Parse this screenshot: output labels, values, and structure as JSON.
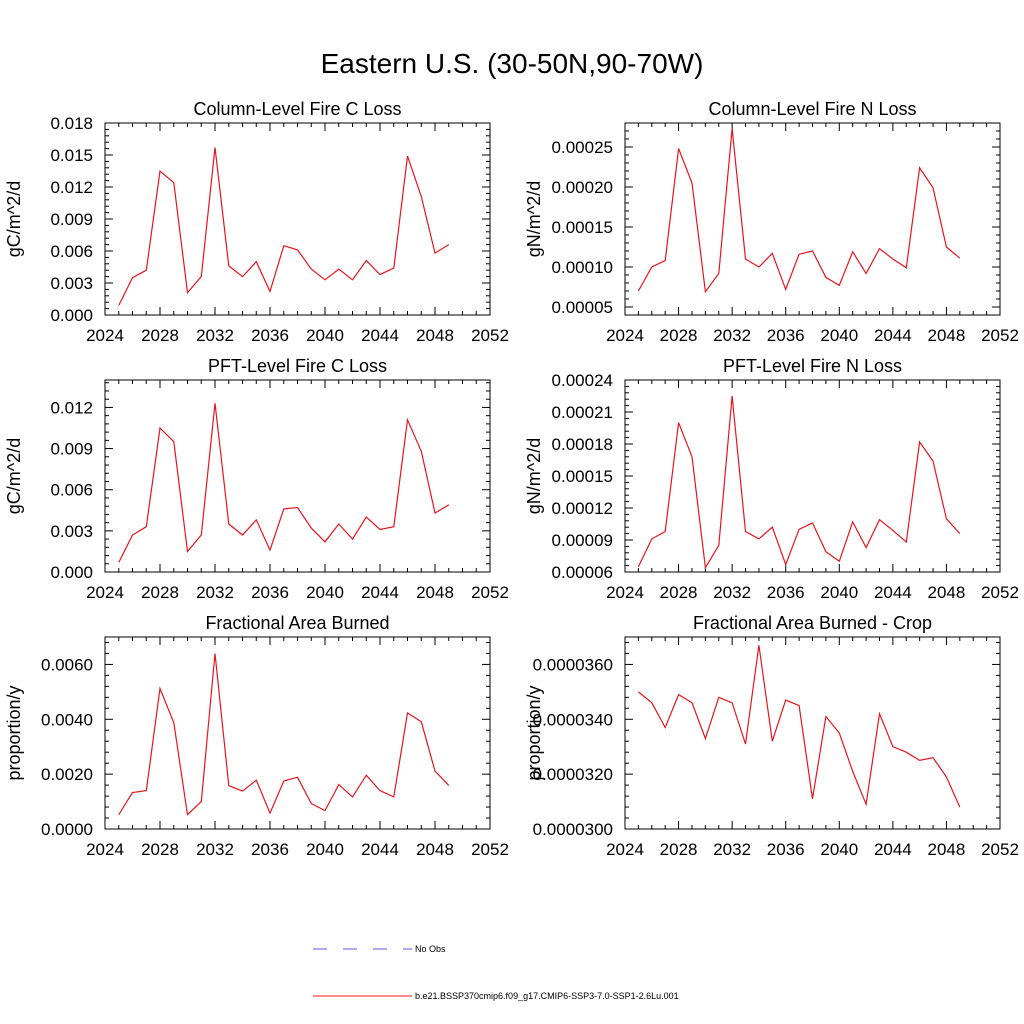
{
  "figure": {
    "title": "Eastern U.S. (30-50N,90-70W)",
    "legend": [
      {
        "label": "No Obs",
        "color": "#5a5adc",
        "dashed": true
      },
      {
        "label": "b.e21.BSSP370cmip6.f09_g17.CMIP6-SSP3-7.0-SSP1-2.6Lu.001",
        "color": "#e8141e",
        "dashed": false
      }
    ]
  },
  "chart_data": [
    {
      "type": "line",
      "title": "Column-Level Fire C Loss",
      "xlabel": "",
      "ylabel": "gC/m^2/d",
      "xlim": [
        2024,
        2052
      ],
      "ylim": [
        0.0,
        0.018
      ],
      "xticks": [
        "2024",
        "2028",
        "2032",
        "2036",
        "2040",
        "2044",
        "2048",
        "2052"
      ],
      "yticks": [
        "0.000",
        "0.003",
        "0.006",
        "0.009",
        "0.012",
        "0.015",
        "0.018"
      ],
      "color": "#e8141e",
      "x": [
        2025,
        2026,
        2027,
        2028,
        2029,
        2030,
        2031,
        2032,
        2033,
        2034,
        2035,
        2036,
        2037,
        2038,
        2039,
        2040,
        2041,
        2042,
        2043,
        2044,
        2045,
        2046,
        2047,
        2048,
        2049
      ],
      "y": [
        0.0009,
        0.0035,
        0.0042,
        0.0135,
        0.0124,
        0.0021,
        0.0036,
        0.0157,
        0.0046,
        0.0036,
        0.005,
        0.0022,
        0.0065,
        0.0061,
        0.0043,
        0.0033,
        0.0043,
        0.0033,
        0.0051,
        0.0038,
        0.0044,
        0.0149,
        0.0111,
        0.0058,
        0.0066
      ]
    },
    {
      "type": "line",
      "title": "Column-Level Fire N Loss",
      "xlabel": "",
      "ylabel": "gN/m^2/d",
      "xlim": [
        2024,
        2052
      ],
      "ylim": [
        4e-05,
        0.00028
      ],
      "xticks": [
        "2024",
        "2028",
        "2032",
        "2036",
        "2040",
        "2044",
        "2048",
        "2052"
      ],
      "yticks": [
        "0.00005",
        "0.00010",
        "0.00015",
        "0.00020",
        "0.00025"
      ],
      "color": "#e8141e",
      "x": [
        2025,
        2026,
        2027,
        2028,
        2029,
        2030,
        2031,
        2032,
        2033,
        2034,
        2035,
        2036,
        2037,
        2038,
        2039,
        2040,
        2041,
        2042,
        2043,
        2044,
        2045,
        2046,
        2047,
        2048,
        2049
      ],
      "y": [
        7e-05,
        0.0001,
        0.000108,
        0.000248,
        0.000205,
        6.9e-05,
        9.2e-05,
        0.000273,
        0.00011,
        0.0001,
        0.000117,
        7.2e-05,
        0.000116,
        0.00012,
        8.7e-05,
        7.7e-05,
        0.000119,
        9.2e-05,
        0.000123,
        0.00011,
        9.9e-05,
        0.000224,
        0.000199,
        0.000125,
        0.000111
      ]
    },
    {
      "type": "line",
      "title": "PFT-Level Fire C Loss",
      "xlabel": "",
      "ylabel": "gC/m^2/d",
      "xlim": [
        2024,
        2052
      ],
      "ylim": [
        0.0,
        0.014
      ],
      "xticks": [
        "2024",
        "2028",
        "2032",
        "2036",
        "2040",
        "2044",
        "2048",
        "2052"
      ],
      "yticks": [
        "0.000",
        "0.003",
        "0.006",
        "0.009",
        "0.012"
      ],
      "color": "#e8141e",
      "x": [
        2025,
        2026,
        2027,
        2028,
        2029,
        2030,
        2031,
        2032,
        2033,
        2034,
        2035,
        2036,
        2037,
        2038,
        2039,
        2040,
        2041,
        2042,
        2043,
        2044,
        2045,
        2046,
        2047,
        2048,
        2049
      ],
      "y": [
        0.0007,
        0.0027,
        0.0033,
        0.0105,
        0.0095,
        0.0015,
        0.0027,
        0.0123,
        0.0035,
        0.0027,
        0.0038,
        0.0016,
        0.0046,
        0.0047,
        0.0032,
        0.0022,
        0.0035,
        0.0024,
        0.004,
        0.0031,
        0.0033,
        0.0111,
        0.0088,
        0.0043,
        0.0049
      ]
    },
    {
      "type": "line",
      "title": "PFT-Level Fire N Loss",
      "xlabel": "",
      "ylabel": "gN/m^2/d",
      "xlim": [
        2024,
        2052
      ],
      "ylim": [
        6e-05,
        0.00024
      ],
      "xticks": [
        "2024",
        "2028",
        "2032",
        "2036",
        "2040",
        "2044",
        "2048",
        "2052"
      ],
      "yticks": [
        "0.00006",
        "0.00009",
        "0.00012",
        "0.00015",
        "0.00018",
        "0.00021",
        "0.00024"
      ],
      "color": "#e8141e",
      "x": [
        2025,
        2026,
        2027,
        2028,
        2029,
        2030,
        2031,
        2032,
        2033,
        2034,
        2035,
        2036,
        2037,
        2038,
        2039,
        2040,
        2041,
        2042,
        2043,
        2044,
        2045,
        2046,
        2047,
        2048,
        2049
      ],
      "y": [
        6.5e-05,
        9.1e-05,
        9.8e-05,
        0.0002,
        0.000168,
        6.4e-05,
        8.5e-05,
        0.000225,
        9.8e-05,
        9.1e-05,
        0.000102,
        6.7e-05,
        0.0001,
        0.000106,
        7.9e-05,
        7e-05,
        0.000107,
        8.3e-05,
        0.000109,
        9.9e-05,
        8.8e-05,
        0.000182,
        0.000164,
        0.00011,
        9.6e-05
      ]
    },
    {
      "type": "line",
      "title": "Fractional Area Burned",
      "xlabel": "",
      "ylabel": "proportion/y",
      "xlim": [
        2024,
        2052
      ],
      "ylim": [
        0.0,
        0.007
      ],
      "xticks": [
        "2024",
        "2028",
        "2032",
        "2036",
        "2040",
        "2044",
        "2048",
        "2052"
      ],
      "yticks": [
        "0.0000",
        "0.0020",
        "0.0040",
        "0.0060"
      ],
      "color": "#e8141e",
      "x": [
        2025,
        2026,
        2027,
        2028,
        2029,
        2030,
        2031,
        2032,
        2033,
        2034,
        2035,
        2036,
        2037,
        2038,
        2039,
        2040,
        2041,
        2042,
        2043,
        2044,
        2045,
        2046,
        2047,
        2048,
        2049
      ],
      "y": [
        0.00052,
        0.00133,
        0.0014,
        0.00512,
        0.00388,
        0.00052,
        0.001,
        0.0064,
        0.00158,
        0.00138,
        0.00178,
        0.00058,
        0.00175,
        0.00189,
        0.00093,
        0.00067,
        0.00162,
        0.00117,
        0.00196,
        0.0014,
        0.00117,
        0.00423,
        0.00391,
        0.00211,
        0.00159
      ]
    },
    {
      "type": "line",
      "title": "Fractional Area Burned - Crop",
      "xlabel": "",
      "ylabel": "proportion/y",
      "xlim": [
        2024,
        2052
      ],
      "ylim": [
        3e-05,
        3.7e-05
      ],
      "xticks": [
        "2024",
        "2028",
        "2032",
        "2036",
        "2040",
        "2044",
        "2048",
        "2052"
      ],
      "yticks": [
        "0.0000300",
        "0.0000320",
        "0.0000340",
        "0.0000360"
      ],
      "color": "#e8141e",
      "x": [
        2025,
        2026,
        2027,
        2028,
        2029,
        2030,
        2031,
        2032,
        2033,
        2034,
        2035,
        2036,
        2037,
        2038,
        2039,
        2040,
        2041,
        2042,
        2043,
        2044,
        2045,
        2046,
        2047,
        2048,
        2049
      ],
      "y": [
        3.5e-05,
        3.46e-05,
        3.37e-05,
        3.49e-05,
        3.46e-05,
        3.33e-05,
        3.48e-05,
        3.46e-05,
        3.31e-05,
        3.67e-05,
        3.32e-05,
        3.47e-05,
        3.45e-05,
        3.11e-05,
        3.41e-05,
        3.35e-05,
        3.21e-05,
        3.09e-05,
        3.42e-05,
        3.3e-05,
        3.28e-05,
        3.25e-05,
        3.26e-05,
        3.19e-05,
        3.08e-05
      ]
    }
  ]
}
